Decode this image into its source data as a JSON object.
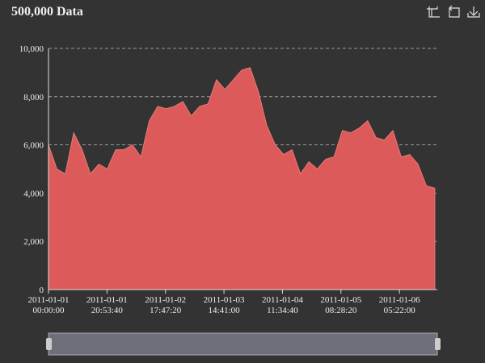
{
  "chart_data": {
    "type": "area",
    "title": "500,000 Data",
    "x": [
      "2011-01-01 00:00:00",
      "2011-01-01 03:00:00",
      "2011-01-01 06:00:00",
      "2011-01-01 09:00:00",
      "2011-01-01 12:00:00",
      "2011-01-01 15:00:00",
      "2011-01-01 18:00:00",
      "2011-01-01 21:00:00",
      "2011-01-02 00:00:00",
      "2011-01-02 03:00:00",
      "2011-01-02 06:00:00",
      "2011-01-02 09:00:00",
      "2011-01-02 12:00:00",
      "2011-01-02 15:00:00",
      "2011-01-02 18:00:00",
      "2011-01-02 21:00:00",
      "2011-01-03 00:00:00",
      "2011-01-03 03:00:00",
      "2011-01-03 06:00:00",
      "2011-01-03 09:00:00",
      "2011-01-03 12:00:00",
      "2011-01-03 15:00:00",
      "2011-01-03 18:00:00",
      "2011-01-03 21:00:00",
      "2011-01-04 00:00:00",
      "2011-01-04 03:00:00",
      "2011-01-04 06:00:00",
      "2011-01-04 09:00:00",
      "2011-01-04 12:00:00",
      "2011-01-04 15:00:00",
      "2011-01-04 18:00:00",
      "2011-01-04 21:00:00",
      "2011-01-05 00:00:00",
      "2011-01-05 03:00:00",
      "2011-01-05 06:00:00",
      "2011-01-05 09:00:00",
      "2011-01-05 12:00:00",
      "2011-01-05 15:00:00",
      "2011-01-05 18:00:00",
      "2011-01-05 21:00:00",
      "2011-01-06 00:00:00",
      "2011-01-06 03:00:00",
      "2011-01-06 06:00:00",
      "2011-01-06 09:00:00",
      "2011-01-06 12:00:00",
      "2011-01-06 15:00:00",
      "2011-01-06 18:00:00"
    ],
    "values": [
      6000,
      5000,
      4800,
      6500,
      5800,
      4800,
      5200,
      5000,
      5800,
      5800,
      6000,
      5500,
      7000,
      7600,
      7500,
      7600,
      7800,
      7200,
      7600,
      7700,
      8700,
      8300,
      8700,
      9100,
      9200,
      8200,
      6800,
      6000,
      5600,
      5800,
      4800,
      5300,
      5000,
      5400,
      5500,
      6600,
      6500,
      6700,
      7000,
      6300,
      6200,
      6600,
      5500,
      5600,
      5200,
      4300,
      4200
    ],
    "color": "#dd5a5a",
    "xlim": [
      "2011-01-01 00:00:00",
      "2011-01-06 18:53:20"
    ],
    "xticks": [
      "2011-01-01 00:00:00",
      "2011-01-01 20:53:40",
      "2011-01-02 17:47:20",
      "2011-01-03 14:41:00",
      "2011-01-04 11:34:40",
      "2011-01-05 08:28:20",
      "2011-01-06 05:22:00"
    ],
    "ylim": [
      0,
      10000
    ],
    "yticks": [
      0,
      {
        "value": 2000,
        "label": "2,000"
      },
      {
        "value": 4000,
        "label": "4,000"
      },
      {
        "value": 6000,
        "label": "6,000"
      },
      {
        "value": 8000,
        "label": "8,000"
      },
      {
        "value": 10000,
        "label": "10,000"
      }
    ],
    "grid": true
  }
}
